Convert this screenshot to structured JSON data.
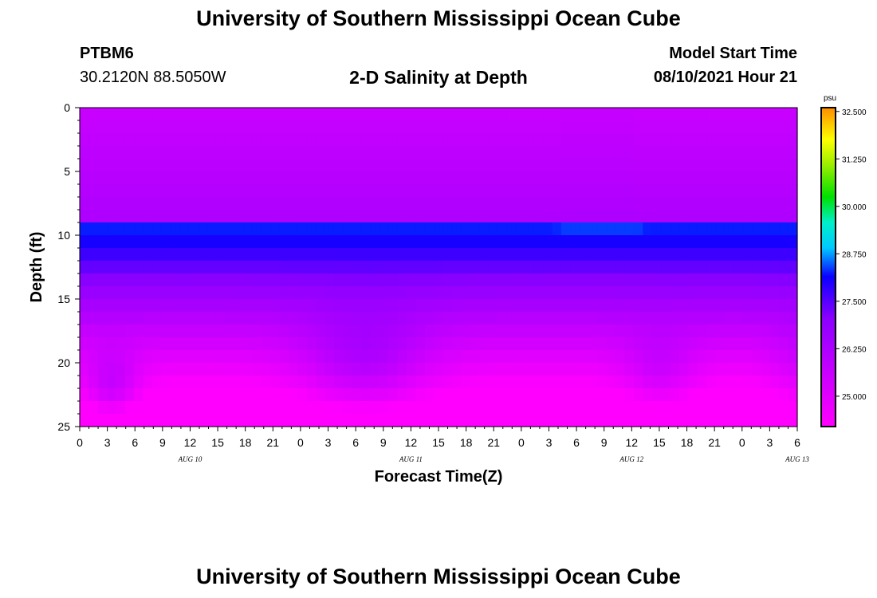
{
  "page": {
    "title_top": "University of Southern Mississippi Ocean Cube",
    "title_bottom": "University of Southern Mississippi Ocean Cube",
    "station": "PTBM6",
    "coords": "30.2120N  88.5050W",
    "subtitle": "2-D Salinity at Depth",
    "model_label": "Model Start Time",
    "model_time": "08/10/2021 Hour 21"
  },
  "chart_data": {
    "type": "heatmap",
    "title": "2-D Salinity at Depth",
    "xlabel": "Forecast Time(Z)",
    "ylabel": "Depth (ft)",
    "ylim": [
      0,
      25
    ],
    "yticks": [
      0,
      5,
      10,
      15,
      20,
      25
    ],
    "xticks": [
      "0",
      "3",
      "6",
      "9",
      "12",
      "15",
      "18",
      "21",
      "0",
      "3",
      "6",
      "9",
      "12",
      "15",
      "18",
      "21",
      "0",
      "3",
      "6",
      "9",
      "12",
      "15",
      "18",
      "21",
      "0",
      "3",
      "6"
    ],
    "day_labels": [
      {
        "text": "AUG 10",
        "hour": 12
      },
      {
        "text": "AUG 11",
        "hour": 36
      },
      {
        "text": "AUG 12",
        "hour": 60
      },
      {
        "text": "AUG 13",
        "hour": 78
      }
    ],
    "x_hours": [
      0,
      78
    ],
    "colorbar": {
      "units": "psu",
      "range": [
        24.2,
        32.6
      ],
      "tick_labels": [
        "32.500",
        "31.250",
        "30.000",
        "28.750",
        "27.500",
        "26.250",
        "25.000"
      ],
      "tick_values": [
        32.5,
        31.25,
        30.0,
        28.75,
        27.5,
        26.25,
        25.0
      ]
    },
    "grid": false
  }
}
